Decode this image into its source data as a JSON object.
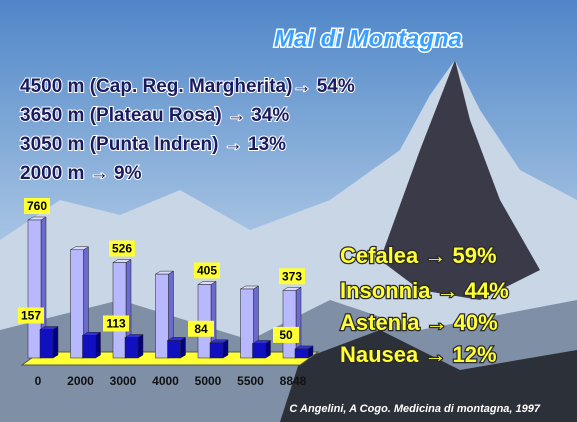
{
  "slide": {
    "title": "Mal di Montagna",
    "altitude_lines": [
      "4500 m (Cap. Reg. Margherita)→ 54%",
      "3650 m (Plateau Rosa) → 34%",
      "3050 m (Punta Indren) → 13%",
      "2000 m → 9%"
    ],
    "symptoms": [
      "Cefalea → 59%",
      "Insonnia → 44%",
      "Astenia → 40%",
      "Nausea → 12%"
    ],
    "citation": "C Angelini, A Cogo. Medicina di montagna, 1997"
  },
  "chart_data": {
    "type": "bar3d",
    "categories": [
      "0",
      "2000",
      "3000",
      "4000",
      "5000",
      "5500",
      "8848"
    ],
    "series": [
      {
        "color": "#b8b8ff",
        "values": [
          760,
          596,
          526,
          462,
          405,
          380,
          373
        ],
        "value_labels": [
          "760",
          null,
          "526",
          null,
          "405",
          null,
          "373"
        ]
      },
      {
        "color": "#1010c0",
        "values": [
          157,
          125,
          113,
          97,
          84,
          80,
          50
        ],
        "value_labels": [
          "157",
          null,
          "113",
          null,
          "84",
          null,
          "50"
        ]
      }
    ]
  }
}
